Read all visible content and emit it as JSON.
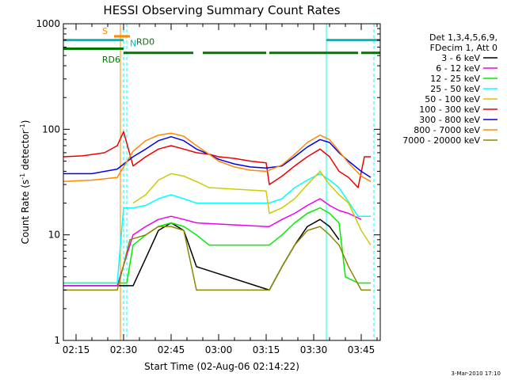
{
  "chart_data": {
    "type": "line",
    "title": "HESSI Observing Summary Count Rates",
    "xlabel": "Start Time (02-Aug-06 02:14:22)",
    "ylabel": "Count Rate (s",
    "ylabel_sup1": "-1",
    "ylabel_mid": " detector",
    "ylabel_sup2": "-1",
    "ylabel_end": ")",
    "y_scale": "log",
    "xlim": [
      "02:11",
      "03:51"
    ],
    "ylim": [
      1,
      1000
    ],
    "x_ticks": [
      "02:15",
      "02:30",
      "02:45",
      "03:00",
      "03:15",
      "03:30",
      "03:45"
    ],
    "y_ticks": [
      {
        "value": 1,
        "label": "1"
      },
      {
        "value": 10,
        "label": "10"
      },
      {
        "value": 100,
        "label": "100"
      },
      {
        "value": 1000,
        "label": "1000"
      }
    ],
    "legend": {
      "placement": "right",
      "header": [
        "Det 1,3,4,5,6,9,",
        "FDecim 1, Att 0"
      ],
      "entries": [
        {
          "label": "3 - 6 keV",
          "color": "#000000"
        },
        {
          "label": "6 - 12 keV",
          "color": "#ee00ee"
        },
        {
          "label": "12 - 25 keV",
          "color": "#00ee00"
        },
        {
          "label": "25 - 50 keV",
          "color": "#00ffff"
        },
        {
          "label": "50 - 100 keV",
          "color": "#cccc00"
        },
        {
          "label": "100 - 300 keV",
          "color": "#ee0000"
        },
        {
          "label": "300 - 800 keV",
          "color": "#0000ee"
        },
        {
          "label": "800 - 7000 keV",
          "color": "#ff8800"
        },
        {
          "label": "7000 - 20000 keV",
          "color": "#888800"
        }
      ]
    },
    "series": [
      {
        "label_ref": 0,
        "x": [
          "02:11",
          "02:24",
          "02:28",
          "02:33",
          "02:37",
          "02:41",
          "02:45",
          "02:49",
          "02:53",
          "03:16",
          "03:20",
          "03:24",
          "03:28",
          "03:32",
          "03:35",
          "03:38"
        ],
        "y": [
          3.3,
          3.3,
          3.3,
          3.3,
          6,
          11,
          13,
          11,
          5,
          3,
          5,
          8,
          12,
          14,
          12,
          9
        ]
      },
      {
        "label_ref": 1,
        "x": [
          "02:11",
          "02:28",
          "02:33",
          "02:37",
          "02:41",
          "02:45",
          "02:49",
          "02:53",
          "03:15",
          "03:16",
          "03:20",
          "03:24",
          "03:28",
          "03:32",
          "03:35",
          "03:38",
          "03:41",
          "03:45"
        ],
        "y": [
          3.3,
          3.3,
          10,
          12,
          14,
          15,
          14,
          13,
          12,
          12,
          14,
          16,
          19,
          22,
          19,
          17,
          16,
          14
        ]
      },
      {
        "label_ref": 2,
        "x": [
          "02:11",
          "02:28",
          "02:31",
          "02:33",
          "02:37",
          "02:41",
          "02:45",
          "02:49",
          "02:53",
          "02:57",
          "03:15",
          "03:16",
          "03:20",
          "03:24",
          "03:28",
          "03:32",
          "03:35",
          "03:38",
          "03:40",
          "03:44",
          "03:48"
        ],
        "y": [
          3.5,
          3.5,
          3.5,
          8,
          10,
          12,
          13,
          12,
          10,
          8,
          8,
          8,
          10,
          13,
          16,
          18,
          16,
          13,
          4,
          3.5,
          3.5
        ]
      },
      {
        "label_ref": 3,
        "x": [
          "02:11",
          "02:28",
          "02:30",
          "02:33",
          "02:37",
          "02:41",
          "02:45",
          "02:49",
          "02:53",
          "03:15",
          "03:16",
          "03:20",
          "03:24",
          "03:28",
          "03:32",
          "03:35",
          "03:38",
          "03:44",
          "03:48"
        ],
        "y": [
          3.5,
          3.5,
          18,
          18,
          19,
          22,
          24,
          22,
          20,
          20,
          20,
          22,
          28,
          33,
          38,
          33,
          28,
          15,
          15
        ]
      },
      {
        "label_ref": 4,
        "x": [
          "02:33",
          "02:37",
          "02:41",
          "02:45",
          "02:49",
          "02:53",
          "02:57",
          "03:15",
          "03:16",
          "03:20",
          "03:24",
          "03:28",
          "03:32",
          "03:35",
          "03:38",
          "03:41",
          "03:45",
          "03:48"
        ],
        "y": [
          20,
          24,
          33,
          38,
          36,
          32,
          28,
          26,
          16,
          18,
          22,
          30,
          40,
          30,
          24,
          20,
          11,
          8
        ]
      },
      {
        "label_ref": 5,
        "x": [
          "02:11",
          "02:17",
          "02:24",
          "02:28",
          "02:30",
          "02:33",
          "02:37",
          "02:41",
          "02:45",
          "02:49",
          "02:53",
          "02:57",
          "03:00",
          "03:05",
          "03:10",
          "03:15",
          "03:16",
          "03:20",
          "03:24",
          "03:28",
          "03:32",
          "03:35",
          "03:38",
          "03:41",
          "03:44",
          "03:46",
          "03:48"
        ],
        "y": [
          55,
          56,
          60,
          70,
          95,
          45,
          55,
          65,
          70,
          65,
          60,
          58,
          55,
          53,
          50,
          48,
          30,
          36,
          45,
          55,
          65,
          55,
          40,
          35,
          28,
          55,
          55
        ]
      },
      {
        "label_ref": 6,
        "x": [
          "02:11",
          "02:20",
          "02:28",
          "02:33",
          "02:37",
          "02:41",
          "02:45",
          "02:49",
          "02:53",
          "02:57",
          "03:00",
          "03:05",
          "03:10",
          "03:15",
          "03:20",
          "03:24",
          "03:28",
          "03:32",
          "03:35",
          "03:38",
          "03:41",
          "03:45",
          "03:48"
        ],
        "y": [
          38,
          38,
          42,
          55,
          65,
          78,
          85,
          78,
          65,
          58,
          52,
          47,
          44,
          43,
          45,
          55,
          68,
          80,
          75,
          60,
          50,
          40,
          35
        ]
      },
      {
        "label_ref": 7,
        "x": [
          "02:11",
          "02:20",
          "02:28",
          "02:33",
          "02:37",
          "02:41",
          "02:45",
          "02:49",
          "02:53",
          "02:57",
          "03:00",
          "03:05",
          "03:10",
          "03:15",
          "03:20",
          "03:24",
          "03:28",
          "03:32",
          "03:35",
          "03:38",
          "03:41",
          "03:45",
          "03:48"
        ],
        "y": [
          32,
          33,
          35,
          62,
          78,
          88,
          92,
          86,
          70,
          58,
          50,
          44,
          41,
          40,
          46,
          58,
          75,
          88,
          80,
          62,
          48,
          36,
          32
        ]
      },
      {
        "label_ref": 8,
        "x": [
          "02:11",
          "02:28",
          "02:32",
          "02:37",
          "02:41",
          "02:45",
          "02:49",
          "02:53",
          "03:15",
          "03:16",
          "03:20",
          "03:24",
          "03:28",
          "03:32",
          "03:35",
          "03:38",
          "03:41",
          "03:45",
          "03:48"
        ],
        "y": [
          3,
          3,
          9,
          10,
          12,
          12,
          11,
          3,
          3,
          3,
          5,
          8,
          11,
          12,
          10,
          8,
          5,
          3,
          3
        ]
      }
    ],
    "status_bars": [
      {
        "label": "S",
        "color": "#ff8800",
        "y": 760,
        "segments": [
          [
            "02:27",
            "02:32"
          ]
        ]
      },
      {
        "label": "N",
        "color": "#00bbbb",
        "y": 700,
        "segments": [
          [
            "02:11",
            "02:30"
          ],
          [
            "03:34",
            "03:51"
          ]
        ]
      },
      {
        "label": "RD0",
        "color": "#007700",
        "y": 580,
        "segments": [
          [
            "02:11",
            "02:30"
          ]
        ]
      },
      {
        "label": "RD6",
        "color": "#007700",
        "y": 530,
        "segments": [
          [
            "02:30",
            "02:52"
          ],
          [
            "02:55",
            "03:15"
          ],
          [
            "03:16",
            "03:44"
          ],
          [
            "03:45",
            "03:51"
          ]
        ]
      }
    ],
    "vertical_lines": [
      {
        "x": "02:11",
        "color": "#00ffff",
        "style": "solid"
      },
      {
        "x": "02:29",
        "color": "#ff8800",
        "style": "solid"
      },
      {
        "x": "02:30",
        "color": "#00ffff",
        "style": "dashed"
      },
      {
        "x": "02:31",
        "color": "#00ffff",
        "style": "dashed"
      },
      {
        "x": "03:34",
        "color": "#00ffff",
        "style": "solid"
      },
      {
        "x": "03:49",
        "color": "#00ffff",
        "style": "dashed"
      }
    ],
    "footer": "3-Mar-2010 17:10"
  }
}
